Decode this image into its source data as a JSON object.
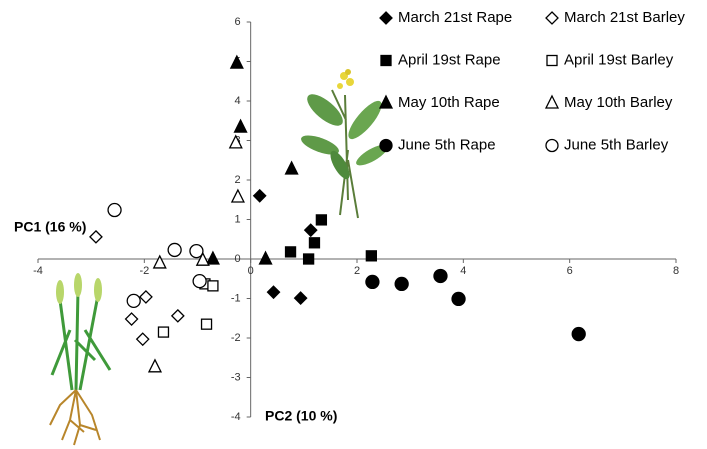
{
  "chart_data": {
    "type": "scatter",
    "x_label": "PC2 (10 %)",
    "y_label": "PC1 (16 %)",
    "xlim": [
      -4,
      8
    ],
    "ylim": [
      -4,
      6
    ],
    "xticks": [
      -4,
      -2,
      0,
      2,
      4,
      6,
      8
    ],
    "yticks": [
      -4,
      -3,
      -2,
      -1,
      0,
      1,
      2,
      3,
      4,
      5,
      6
    ],
    "series": [
      {
        "name": "March 21st Rape",
        "color": "#000000",
        "marker": "diamond",
        "filled": true,
        "x": [
          0.17,
          1.13,
          0.43,
          0.94
        ],
        "y": [
          1.6,
          0.73,
          -0.84,
          -0.99
        ]
      },
      {
        "name": "March 21st Barley",
        "color": "#000000",
        "marker": "diamond",
        "filled": false,
        "x": [
          -2.91,
          -1.97,
          -2.24,
          -2.03,
          -1.37
        ],
        "y": [
          0.56,
          -0.96,
          -1.52,
          -2.03,
          -1.44
        ]
      },
      {
        "name": "April 19st Rape",
        "color": "#000000",
        "marker": "square",
        "filled": true,
        "x": [
          1.33,
          1.2,
          1.09,
          0.75,
          2.27
        ],
        "y": [
          0.99,
          0.41,
          0.0,
          0.18,
          0.08
        ]
      },
      {
        "name": "April 19st Barley",
        "color": "#000000",
        "marker": "square",
        "filled": false,
        "x": [
          -0.86,
          -0.71,
          -1.64,
          -0.83
        ],
        "y": [
          -0.63,
          -0.68,
          -1.85,
          -1.65
        ]
      },
      {
        "name": "May 10th Rape",
        "color": "#000000",
        "marker": "triangle",
        "filled": true,
        "x": [
          -0.26,
          -0.19,
          0.77,
          0.28,
          -0.71
        ],
        "y": [
          4.96,
          3.34,
          2.28,
          0.0,
          0.0
        ]
      },
      {
        "name": "May 10th Barley",
        "color": "#000000",
        "marker": "triangle",
        "filled": false,
        "x": [
          -0.28,
          -0.24,
          -1.71,
          -0.9,
          -1.8
        ],
        "y": [
          2.94,
          1.57,
          -0.1,
          -0.03,
          -2.73
        ]
      },
      {
        "name": "June 5th Rape",
        "color": "#000000",
        "marker": "circle",
        "filled": true,
        "x": [
          2.29,
          2.84,
          3.57,
          3.91,
          6.17
        ],
        "y": [
          -0.58,
          -0.63,
          -0.43,
          -1.01,
          -1.9
        ]
      },
      {
        "name": "June 5th Barley",
        "color": "#000000",
        "marker": "circle",
        "filled": false,
        "x": [
          -2.56,
          -1.43,
          -1.02,
          -2.2,
          -0.96
        ],
        "y": [
          1.24,
          0.23,
          0.2,
          -1.06,
          -0.56
        ]
      }
    ]
  }
}
